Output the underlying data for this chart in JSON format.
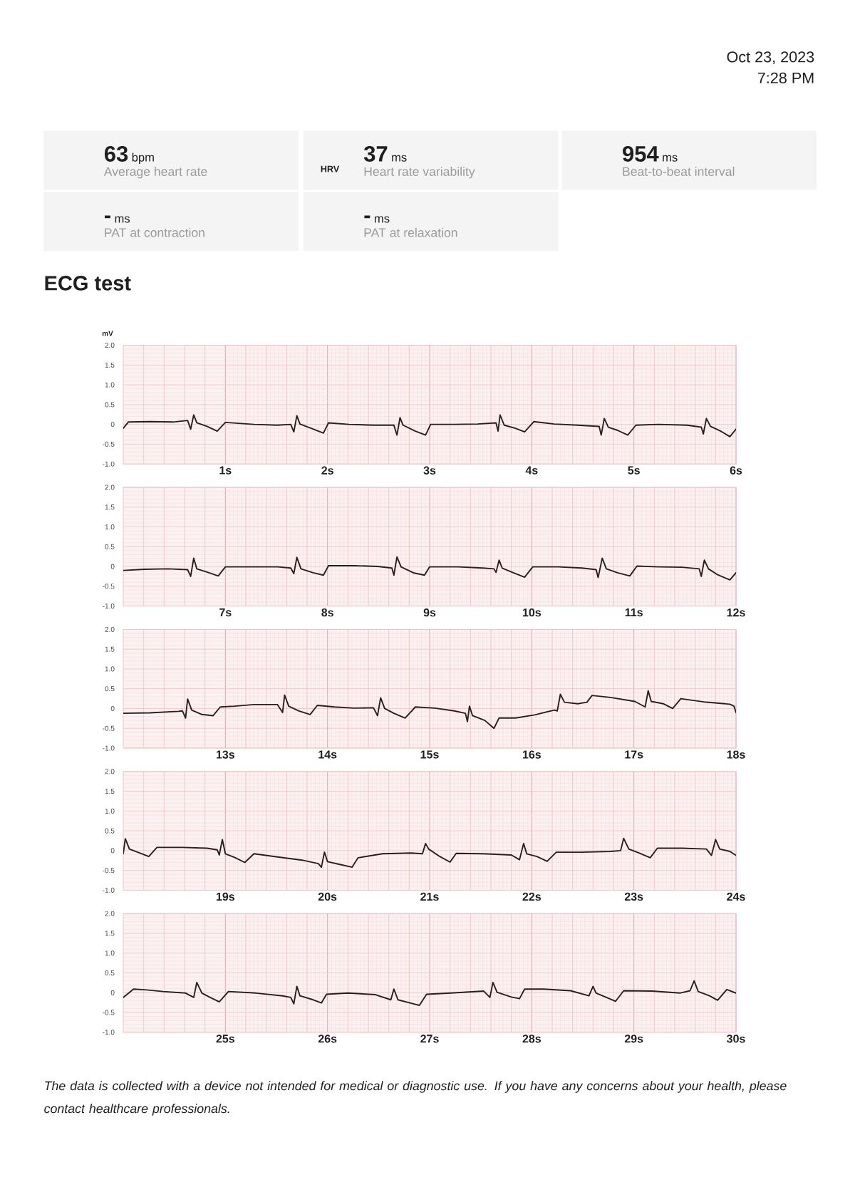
{
  "chart_data": [
    {
      "type": "other",
      "annotations": [
        "Oct 23, 2023",
        "7:28 PM",
        "63",
        "bpm",
        "Average heart rate",
        "37",
        "ms",
        "Heart rate variability",
        "954",
        "ms",
        "Beat-to-beat interval",
        "-",
        "ms",
        "PAT at contraction",
        "-",
        "ms",
        "PAT at relaxation",
        "HRV"
      ]
    },
    {
      "type": "line",
      "title": "ECG test",
      "ylabel": "mV",
      "color": "#2a1e1e",
      "grid": true,
      "xlim": [
        0,
        6
      ],
      "ylim": [
        -1,
        2
      ],
      "xticks": [
        {
          "value": 1,
          "label": "1s"
        },
        {
          "value": 2,
          "label": "2s"
        },
        {
          "value": 3,
          "label": "3s"
        },
        {
          "value": 4,
          "label": "4s"
        },
        {
          "value": 5,
          "label": "5s"
        },
        {
          "value": 6,
          "label": "6s"
        }
      ],
      "yticks": [
        {
          "value": -1,
          "label": "-1.0"
        },
        -0.5,
        0,
        0.5,
        {
          "value": 1,
          "label": "1.0"
        },
        1.5,
        {
          "value": 2,
          "label": "2.0"
        }
      ],
      "x": [
        0,
        0.05,
        0.26,
        0.49,
        0.63,
        0.66,
        0.69,
        0.72,
        0.82,
        0.92,
        1.0,
        1.28,
        1.51,
        1.64,
        1.67,
        1.7,
        1.73,
        1.84,
        1.96,
        2.01,
        2.21,
        2.45,
        2.65,
        2.68,
        2.71,
        2.74,
        2.86,
        2.96,
        3.01,
        3.24,
        3.47,
        3.65,
        3.67,
        3.69,
        3.73,
        3.84,
        3.93,
        4.02,
        4.22,
        4.45,
        4.66,
        4.68,
        4.71,
        4.75,
        4.84,
        4.94,
        5.02,
        5.24,
        5.52,
        5.66,
        5.68,
        5.71,
        5.75,
        5.85,
        5.94,
        6.0
      ],
      "values": [
        -0.1,
        0.06,
        0.07,
        0.06,
        0.1,
        -0.12,
        0.24,
        0.04,
        -0.05,
        -0.17,
        0.05,
        0.0,
        -0.02,
        0.0,
        -0.19,
        0.22,
        0.01,
        -0.1,
        -0.22,
        0.04,
        0.0,
        -0.02,
        -0.02,
        -0.27,
        0.17,
        -0.02,
        -0.17,
        -0.27,
        0.0,
        0.0,
        0.01,
        0.04,
        -0.17,
        0.24,
        -0.02,
        -0.1,
        -0.19,
        0.07,
        0.01,
        -0.02,
        -0.05,
        -0.27,
        0.15,
        -0.07,
        -0.15,
        -0.27,
        -0.02,
        0.0,
        -0.02,
        -0.07,
        -0.24,
        0.15,
        -0.05,
        -0.17,
        -0.31,
        -0.12
      ]
    },
    {
      "type": "line",
      "color": "#2a1e1e",
      "grid": true,
      "xlim": [
        6,
        12
      ],
      "ylim": [
        -1,
        2
      ],
      "xticks": [
        {
          "value": 7,
          "label": "7s"
        },
        {
          "value": 8,
          "label": "8s"
        },
        {
          "value": 9,
          "label": "9s"
        },
        {
          "value": 10,
          "label": "10s"
        },
        {
          "value": 11,
          "label": "11s"
        },
        {
          "value": 12,
          "label": "12s"
        }
      ],
      "yticks": [
        {
          "value": -1,
          "label": "-1.0"
        },
        -0.5,
        0,
        0.5,
        {
          "value": 1,
          "label": "1.0"
        },
        1.5,
        {
          "value": 2,
          "label": "2.0"
        }
      ],
      "x": [
        6.0,
        6.21,
        6.44,
        6.63,
        6.66,
        6.69,
        6.72,
        6.84,
        6.93,
        7.0,
        7.28,
        7.51,
        7.64,
        7.67,
        7.7,
        7.74,
        7.86,
        7.96,
        8.01,
        8.26,
        8.49,
        8.63,
        8.65,
        8.68,
        8.72,
        8.84,
        8.95,
        9.0,
        9.28,
        9.52,
        9.63,
        9.65,
        9.68,
        9.71,
        9.82,
        9.93,
        10.01,
        10.26,
        10.49,
        10.63,
        10.65,
        10.69,
        10.73,
        10.84,
        10.96,
        11.03,
        11.24,
        11.47,
        11.64,
        11.66,
        11.69,
        11.73,
        11.82,
        11.94,
        12.0
      ],
      "values": [
        -0.1,
        -0.07,
        -0.06,
        -0.08,
        -0.25,
        0.21,
        -0.06,
        -0.16,
        -0.24,
        -0.01,
        -0.01,
        -0.01,
        -0.04,
        -0.18,
        0.23,
        -0.06,
        -0.16,
        -0.22,
        0.02,
        0.02,
        0.0,
        -0.04,
        -0.22,
        0.24,
        -0.01,
        -0.16,
        -0.22,
        -0.01,
        -0.01,
        -0.04,
        -0.06,
        -0.15,
        0.16,
        -0.04,
        -0.16,
        -0.27,
        -0.01,
        -0.01,
        -0.04,
        -0.08,
        -0.28,
        0.21,
        -0.06,
        -0.16,
        -0.24,
        0.01,
        -0.01,
        -0.02,
        -0.06,
        -0.25,
        0.16,
        -0.06,
        -0.21,
        -0.34,
        -0.16
      ]
    },
    {
      "type": "line",
      "color": "#2a1e1e",
      "grid": true,
      "xlim": [
        12,
        18
      ],
      "ylim": [
        -1,
        2
      ],
      "xticks": [
        {
          "value": 13,
          "label": "13s"
        },
        {
          "value": 14,
          "label": "14s"
        },
        {
          "value": 15,
          "label": "15s"
        },
        {
          "value": 16,
          "label": "16s"
        },
        {
          "value": 17,
          "label": "17s"
        },
        {
          "value": 18,
          "label": "18s"
        }
      ],
      "yticks": [
        {
          "value": -1,
          "label": "-1.0"
        },
        -0.5,
        0,
        0.5,
        {
          "value": 1,
          "label": "1.0"
        },
        1.5,
        {
          "value": 2,
          "label": "2.0"
        }
      ],
      "x": [
        12.0,
        12.26,
        12.54,
        12.58,
        12.61,
        12.63,
        12.67,
        12.77,
        12.88,
        12.95,
        13.09,
        13.28,
        13.51,
        13.56,
        13.58,
        13.62,
        13.72,
        13.83,
        13.9,
        14.07,
        14.26,
        14.45,
        14.49,
        14.52,
        14.56,
        14.65,
        14.76,
        14.86,
        15.05,
        15.24,
        15.35,
        15.37,
        15.39,
        15.42,
        15.54,
        15.63,
        15.68,
        15.84,
        16.03,
        16.22,
        16.25,
        16.28,
        16.32,
        16.45,
        16.54,
        16.59,
        16.77,
        17.01,
        17.11,
        17.14,
        17.17,
        17.29,
        17.38,
        17.46,
        17.71,
        17.94,
        17.98,
        18.0
      ],
      "values": [
        -0.12,
        -0.11,
        -0.07,
        -0.06,
        -0.24,
        0.24,
        -0.04,
        -0.15,
        -0.18,
        0.04,
        0.06,
        0.1,
        0.1,
        -0.1,
        0.34,
        0.06,
        -0.06,
        -0.15,
        0.08,
        0.04,
        0.01,
        0.02,
        -0.18,
        0.27,
        0.0,
        -0.12,
        -0.24,
        0.04,
        0.01,
        -0.06,
        -0.12,
        -0.33,
        0.06,
        -0.18,
        -0.3,
        -0.5,
        -0.24,
        -0.24,
        -0.16,
        -0.04,
        -0.06,
        0.36,
        0.16,
        0.12,
        0.16,
        0.33,
        0.28,
        0.18,
        0.04,
        0.45,
        0.18,
        0.12,
        0.0,
        0.25,
        0.16,
        0.11,
        0.06,
        -0.1
      ]
    },
    {
      "type": "line",
      "color": "#2a1e1e",
      "grid": true,
      "xlim": [
        18,
        24
      ],
      "ylim": [
        -1,
        2
      ],
      "xticks": [
        {
          "value": 19,
          "label": "19s"
        },
        {
          "value": 20,
          "label": "20s"
        },
        {
          "value": 21,
          "label": "21s"
        },
        {
          "value": 22,
          "label": "22s"
        },
        {
          "value": 23,
          "label": "23s"
        },
        {
          "value": 24,
          "label": "24s"
        }
      ],
      "yticks": [
        {
          "value": -1,
          "label": "-1.0"
        },
        -0.5,
        0,
        0.5,
        {
          "value": 1,
          "label": "1.0"
        },
        1.5,
        {
          "value": 2,
          "label": "2.0"
        }
      ],
      "x": [
        18.0,
        18.02,
        18.06,
        18.16,
        18.25,
        18.33,
        18.58,
        18.82,
        18.92,
        18.94,
        18.97,
        19.0,
        19.09,
        19.19,
        19.28,
        19.51,
        19.75,
        19.91,
        19.94,
        19.97,
        20.0,
        20.12,
        20.24,
        20.3,
        20.54,
        20.82,
        20.93,
        20.96,
        20.99,
        21.1,
        21.2,
        21.26,
        21.52,
        21.8,
        21.88,
        21.92,
        21.95,
        22.05,
        22.15,
        22.24,
        22.49,
        22.77,
        22.87,
        22.9,
        22.95,
        23.05,
        23.16,
        23.23,
        23.47,
        23.71,
        23.76,
        23.8,
        23.84,
        23.94,
        24.0
      ],
      "values": [
        -0.08,
        0.3,
        0.04,
        -0.06,
        -0.15,
        0.08,
        0.08,
        0.06,
        0.02,
        -0.11,
        0.28,
        -0.08,
        -0.17,
        -0.3,
        -0.08,
        -0.16,
        -0.24,
        -0.33,
        -0.42,
        -0.04,
        -0.28,
        -0.35,
        -0.42,
        -0.18,
        -0.08,
        -0.06,
        -0.08,
        0.18,
        0.04,
        -0.15,
        -0.29,
        -0.07,
        -0.08,
        -0.11,
        -0.23,
        0.18,
        -0.08,
        -0.15,
        -0.27,
        -0.04,
        -0.04,
        -0.02,
        0.0,
        0.31,
        0.04,
        -0.06,
        -0.18,
        0.06,
        0.06,
        0.04,
        -0.12,
        0.28,
        0.04,
        -0.02,
        -0.12
      ]
    },
    {
      "type": "line",
      "color": "#2a1e1e",
      "grid": true,
      "xlim": [
        24,
        30
      ],
      "ylim": [
        -1,
        2
      ],
      "xticks": [
        {
          "value": 25,
          "label": "25s"
        },
        {
          "value": 26,
          "label": "26s"
        },
        {
          "value": 27,
          "label": "27s"
        },
        {
          "value": 28,
          "label": "28s"
        },
        {
          "value": 29,
          "label": "29s"
        },
        {
          "value": 30,
          "label": "30s"
        }
      ],
      "yticks": [
        {
          "value": -1,
          "label": "-1.0"
        },
        -0.5,
        0,
        0.5,
        {
          "value": 1,
          "label": "1.0"
        },
        1.5,
        {
          "value": 2,
          "label": "2.0"
        }
      ],
      "x": [
        24.0,
        24.1,
        24.23,
        24.39,
        24.61,
        24.69,
        24.72,
        24.77,
        24.85,
        24.94,
        25.03,
        25.3,
        25.56,
        25.64,
        25.67,
        25.7,
        25.73,
        25.86,
        25.94,
        25.99,
        26.2,
        26.47,
        26.62,
        26.65,
        26.69,
        26.84,
        26.9,
        26.97,
        27.21,
        27.53,
        27.59,
        27.62,
        27.66,
        27.8,
        27.88,
        27.93,
        28.12,
        28.38,
        28.56,
        28.6,
        28.63,
        28.76,
        28.82,
        28.9,
        29.18,
        29.45,
        29.55,
        29.59,
        29.63,
        29.74,
        29.82,
        29.91,
        30.0
      ],
      "values": [
        -0.12,
        0.09,
        0.07,
        0.03,
        -0.01,
        -0.12,
        0.26,
        -0.01,
        -0.12,
        -0.23,
        0.03,
        -0.01,
        -0.08,
        -0.12,
        -0.28,
        0.16,
        -0.08,
        -0.18,
        -0.26,
        -0.04,
        -0.01,
        -0.05,
        -0.18,
        0.09,
        -0.18,
        -0.28,
        -0.32,
        -0.04,
        -0.01,
        0.04,
        -0.12,
        0.26,
        0.01,
        -0.11,
        -0.15,
        0.09,
        0.09,
        0.05,
        -0.08,
        0.16,
        -0.01,
        -0.15,
        -0.22,
        0.05,
        0.04,
        -0.01,
        0.05,
        0.3,
        0.03,
        -0.08,
        -0.19,
        0.08,
        -0.01
      ],
      "annotations": [
        "The data is collected with a device not intended for medical or diagnostic use. If you have any concerns about your health, please contact healthcare professionals."
      ]
    }
  ]
}
